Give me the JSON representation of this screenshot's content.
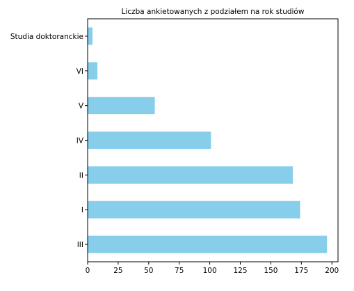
{
  "chart_data": {
    "type": "bar",
    "orientation": "horizontal",
    "title": "Liczba ankietowanych z podziałem na rok studiów",
    "xlabel": "",
    "ylabel": "",
    "categories": [
      "III",
      "I",
      "II",
      "IV",
      "V",
      "VI",
      "Studia doktoranckie"
    ],
    "values": [
      196,
      174,
      168,
      101,
      55,
      8,
      4
    ],
    "xlim": [
      0,
      205
    ],
    "xticks": [
      0,
      25,
      50,
      75,
      100,
      125,
      150,
      175,
      200
    ],
    "bar_color": "#87CEEB",
    "grid": false,
    "legend": "none"
  }
}
